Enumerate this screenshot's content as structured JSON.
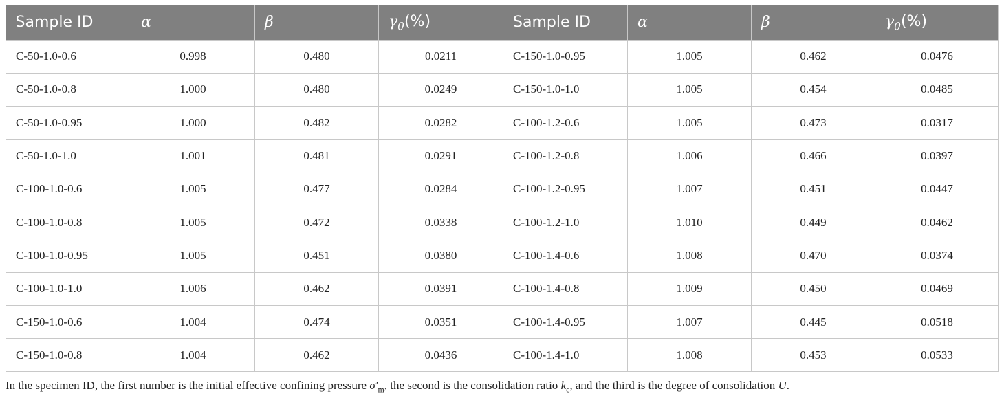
{
  "table": {
    "header": [
      "Sample ID",
      "α",
      "β",
      [
        "γ",
        "0",
        "(%)"
      ],
      "Sample ID",
      "α",
      "β",
      [
        "γ",
        "0",
        "(%)"
      ]
    ],
    "rows": [
      [
        "C-50-1.0-0.6",
        "0.998",
        "0.480",
        "0.0211",
        "C-150-1.0-0.95",
        "1.005",
        "0.462",
        "0.0476"
      ],
      [
        "C-50-1.0-0.8",
        "1.000",
        "0.480",
        "0.0249",
        "C-150-1.0-1.0",
        "1.005",
        "0.454",
        "0.0485"
      ],
      [
        "C-50-1.0-0.95",
        "1.000",
        "0.482",
        "0.0282",
        "C-100-1.2-0.6",
        "1.005",
        "0.473",
        "0.0317"
      ],
      [
        "C-50-1.0-1.0",
        "1.001",
        "0.481",
        "0.0291",
        "C-100-1.2-0.8",
        "1.006",
        "0.466",
        "0.0397"
      ],
      [
        "C-100-1.0-0.6",
        "1.005",
        "0.477",
        "0.0284",
        "C-100-1.2-0.95",
        "1.007",
        "0.451",
        "0.0447"
      ],
      [
        "C-100-1.0-0.8",
        "1.005",
        "0.472",
        "0.0338",
        "C-100-1.2-1.0",
        "1.010",
        "0.449",
        "0.0462"
      ],
      [
        "C-100-1.0-0.95",
        "1.005",
        "0.451",
        "0.0380",
        "C-100-1.4-0.6",
        "1.008",
        "0.470",
        "0.0374"
      ],
      [
        "C-100-1.0-1.0",
        "1.006",
        "0.462",
        "0.0391",
        "C-100-1.4-0.8",
        "1.009",
        "0.450",
        "0.0469"
      ],
      [
        "C-150-1.0-0.6",
        "1.004",
        "0.474",
        "0.0351",
        "C-100-1.4-0.95",
        "1.007",
        "0.445",
        "0.0518"
      ],
      [
        "C-150-1.0-0.8",
        "1.004",
        "0.462",
        "0.0436",
        "C-100-1.4-1.0",
        "1.008",
        "0.453",
        "0.0533"
      ]
    ]
  },
  "footnote": [
    "In the specimen ID, the first number is the initial effective confining pressure ",
    "σ′",
    "m",
    ", the second is the consolidation ratio ",
    "k",
    "c",
    ", and the third is the degree of consolidation ",
    "U",
    "."
  ]
}
